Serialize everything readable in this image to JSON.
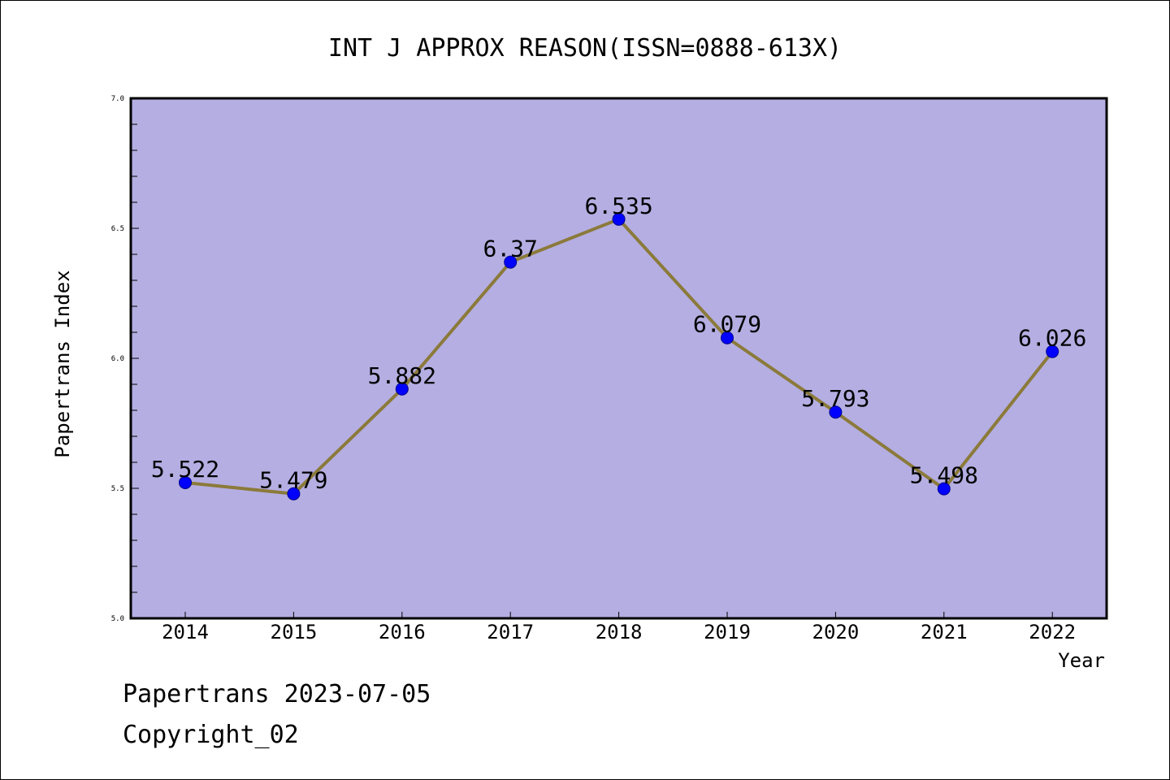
{
  "chart_data": {
    "type": "line",
    "title": "INT J APPROX REASON(ISSN=0888-613X)",
    "xlabel": "Year",
    "ylabel": "Papertrans Index",
    "categories": [
      "2014",
      "2015",
      "2016",
      "2017",
      "2018",
      "2019",
      "2020",
      "2021",
      "2022"
    ],
    "series": [
      {
        "values": [
          5.522,
          5.479,
          5.882,
          6.37,
          6.535,
          6.079,
          5.793,
          5.498,
          6.026
        ],
        "labels": [
          "5.522",
          "5.479",
          "5.882",
          "6.37",
          "6.535",
          "6.079",
          "5.793",
          "5.498",
          "6.026"
        ]
      }
    ],
    "ylim": [
      5.0,
      7.0
    ],
    "yticks": [
      "5.0",
      "5.5",
      "6.0",
      "6.5",
      "7.0"
    ],
    "grid": false,
    "colors": {
      "plot_background": "#b4aee2",
      "line": "#8b7a3a",
      "marker": "#0000ff"
    }
  },
  "footer": {
    "source": "Papertrans 2023-07-05",
    "copyright": "Copyright_02"
  }
}
